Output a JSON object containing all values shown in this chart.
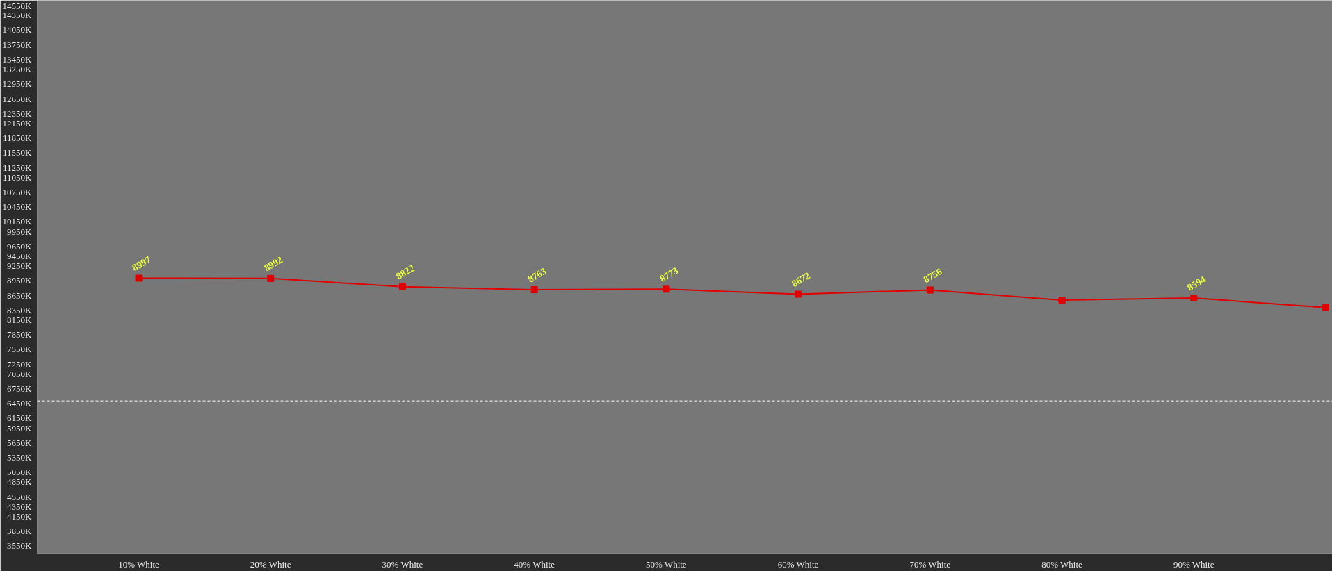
{
  "chart_data": {
    "type": "line",
    "categories": [
      "10% White",
      "20% White",
      "30% White",
      "40% White",
      "50% White",
      "60% White",
      "70% White",
      "80% White",
      "90% White",
      null
    ],
    "series": [
      {
        "color": "#e00000",
        "values": [
          8997,
          8992,
          8822,
          8763,
          8773,
          8672,
          8756,
          8550,
          8594,
          8400
        ],
        "value_labels": [
          "8997",
          "8992",
          "8822",
          "8763",
          "8773",
          "8672",
          "8756",
          null,
          "8594",
          null
        ]
      }
    ],
    "marker": "square",
    "line_style": "solid",
    "grid": false,
    "ylim": [
      3400,
      14650
    ],
    "yticks": [
      {
        "value": 3550,
        "label": "3550K"
      },
      {
        "value": 3850,
        "label": "3850K"
      },
      {
        "value": 4150,
        "label": "4150K"
      },
      {
        "value": 4350,
        "label": "4350K"
      },
      {
        "value": 4550,
        "label": "4550K"
      },
      {
        "value": 4850,
        "label": "4850K"
      },
      {
        "value": 5050,
        "label": "5050K"
      },
      {
        "value": 5350,
        "label": "5350K"
      },
      {
        "value": 5650,
        "label": "5650K"
      },
      {
        "value": 5950,
        "label": "5950K"
      },
      {
        "value": 6150,
        "label": "6150K"
      },
      {
        "value": 6450,
        "label": "6450K"
      },
      {
        "value": 6750,
        "label": "6750K"
      },
      {
        "value": 7050,
        "label": "7050K"
      },
      {
        "value": 7250,
        "label": "7250K"
      },
      {
        "value": 7550,
        "label": "7550K"
      },
      {
        "value": 7850,
        "label": "7850K"
      },
      {
        "value": 8150,
        "label": "8150K"
      },
      {
        "value": 8350,
        "label": "8350K"
      },
      {
        "value": 8650,
        "label": "8650K"
      },
      {
        "value": 8950,
        "label": "8950K"
      },
      {
        "value": 9250,
        "label": "9250K"
      },
      {
        "value": 9450,
        "label": "9450K"
      },
      {
        "value": 9650,
        "label": "9650K"
      },
      {
        "value": 9950,
        "label": "9950K"
      },
      {
        "value": 10150,
        "label": "10150K"
      },
      {
        "value": 10450,
        "label": "10450K"
      },
      {
        "value": 10750,
        "label": "10750K"
      },
      {
        "value": 11050,
        "label": "11050K"
      },
      {
        "value": 11250,
        "label": "11250K"
      },
      {
        "value": 11550,
        "label": "11550K"
      },
      {
        "value": 11850,
        "label": "11850K"
      },
      {
        "value": 12150,
        "label": "12150K"
      },
      {
        "value": 12350,
        "label": "12350K"
      },
      {
        "value": 12650,
        "label": "12650K"
      },
      {
        "value": 12950,
        "label": "12950K"
      },
      {
        "value": 13250,
        "label": "13250K"
      },
      {
        "value": 13450,
        "label": "13450K"
      },
      {
        "value": 13750,
        "label": "13750K"
      },
      {
        "value": 14050,
        "label": "14050K"
      },
      {
        "value": 14350,
        "label": "14350K"
      },
      {
        "value": 14550,
        "label": "14550K"
      }
    ],
    "ref_lines": [
      {
        "axis": "y",
        "value": 6500,
        "color": "#ffffff",
        "line_style": "dashed"
      }
    ]
  }
}
